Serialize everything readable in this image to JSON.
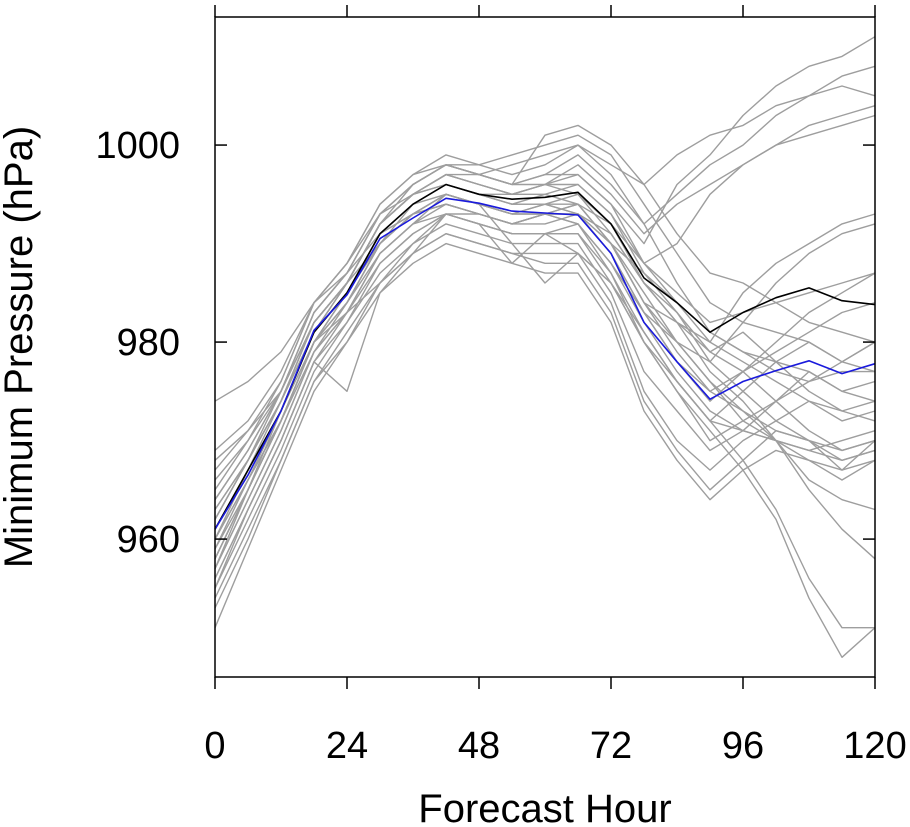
{
  "chart_data": {
    "type": "line",
    "title": "",
    "xlabel": "Forecast Hour",
    "ylabel": "Minimum Pressure (hPa)",
    "xlim": [
      0,
      120
    ],
    "ylim": [
      946,
      1013
    ],
    "xticks": [
      0,
      24,
      48,
      72,
      96,
      120
    ],
    "yticks": [
      960,
      980,
      1000
    ],
    "grid": false,
    "legend": "none",
    "colors": {
      "members": "#9e9e9e",
      "black": "#000000",
      "blue": "#1a1adc",
      "frame": "#000000"
    },
    "x": [
      0,
      6,
      12,
      18,
      24,
      30,
      36,
      42,
      48,
      54,
      60,
      66,
      72,
      78,
      84,
      90,
      96,
      102,
      108,
      114,
      120
    ],
    "series": [
      {
        "color": "#000000",
        "values": [
          961,
          967,
          973,
          981,
          985,
          991,
          994,
          996,
          995,
          994.5,
          994.7,
          995.2,
          992,
          986.5,
          984,
          981,
          983,
          984.5,
          985.5,
          984.2,
          983.8
        ]
      },
      {
        "color": "#1a1adc",
        "values": [
          961,
          966.5,
          973,
          981.2,
          984.8,
          990.5,
          992.6,
          994.6,
          994.1,
          993.3,
          993.1,
          992.9,
          989,
          982,
          978,
          974.2,
          976,
          977.1,
          978.1,
          976.8,
          977.8
        ]
      },
      {
        "color": "#9e9e9e",
        "values": [
          958,
          965,
          973,
          981,
          986,
          992,
          995,
          997,
          996,
          995,
          996,
          997,
          994,
          990,
          996,
          999,
          1003,
          1006,
          1008,
          1009,
          1011
        ]
      },
      {
        "color": "#9e9e9e",
        "values": [
          964,
          969,
          975,
          983,
          987,
          993,
          996,
          998,
          997,
          996,
          997,
          999,
          996,
          992,
          995,
          998,
          1000,
          1003,
          1005,
          1007,
          1008
        ]
      },
      {
        "color": "#9e9e9e",
        "values": [
          967,
          971,
          976,
          984,
          988,
          994,
          997,
          999,
          998,
          997,
          998,
          1000,
          998,
          996,
          999,
          1001,
          1002,
          1004,
          1005,
          1006,
          1005
        ]
      },
      {
        "color": "#9e9e9e",
        "values": [
          962,
          968,
          974,
          982,
          986,
          992,
          995,
          997,
          996,
          995,
          996,
          998,
          995,
          991,
          994,
          996,
          998,
          1000,
          1001,
          1002,
          1003
        ]
      },
      {
        "color": "#9e9e9e",
        "values": [
          960,
          966,
          972,
          980,
          985,
          991,
          994,
          996,
          995,
          994,
          995,
          996,
          993,
          988,
          990,
          995,
          998,
          1000,
          1002,
          1003,
          1004
        ]
      },
      {
        "color": "#9e9e9e",
        "values": [
          956,
          963,
          970,
          978,
          983,
          989,
          992,
          995,
          994,
          993,
          994,
          994,
          990,
          984,
          982,
          980,
          985,
          988,
          990,
          992,
          993
        ]
      },
      {
        "color": "#9e9e9e",
        "values": [
          963,
          968,
          974,
          981,
          986,
          990,
          993,
          994,
          993,
          992,
          993,
          992,
          988,
          983,
          980,
          978,
          982,
          986,
          989,
          991,
          992
        ]
      },
      {
        "color": "#9e9e9e",
        "values": [
          959,
          965,
          972,
          980,
          984,
          990,
          993,
          995,
          994,
          993,
          993,
          993,
          989,
          983,
          978,
          974,
          977,
          980,
          983,
          985,
          987
        ]
      },
      {
        "color": "#9e9e9e",
        "values": [
          957,
          964,
          971,
          979,
          983,
          988,
          991,
          993,
          992,
          991,
          991,
          991,
          986,
          980,
          976,
          972,
          975,
          978,
          980,
          978,
          980
        ]
      },
      {
        "color": "#9e9e9e",
        "values": [
          955,
          962,
          969,
          977,
          982,
          987,
          990,
          992,
          991,
          990,
          990,
          990,
          985,
          977,
          973,
          969,
          971,
          974,
          977,
          975,
          976
        ]
      },
      {
        "color": "#9e9e9e",
        "values": [
          954,
          961,
          968,
          976,
          981,
          986,
          989,
          991,
          990,
          989,
          989,
          989,
          984,
          975,
          970,
          967,
          970,
          972,
          974,
          972,
          973
        ]
      },
      {
        "color": "#9e9e9e",
        "values": [
          953,
          960,
          968,
          976,
          980,
          986,
          989,
          991,
          990,
          989,
          988,
          988,
          983,
          974,
          969,
          965,
          968,
          971,
          970,
          967,
          970
        ]
      },
      {
        "color": "#9e9e9e",
        "values": [
          951,
          959,
          967,
          975,
          980,
          985,
          988,
          990,
          989,
          988,
          987,
          987,
          982,
          973,
          968,
          964,
          967,
          969,
          968,
          966,
          968
        ]
      },
      {
        "color": "#9e9e9e",
        "values": [
          966,
          970,
          975,
          983,
          987,
          993,
          996,
          998,
          997,
          996,
          996,
          996,
          993,
          987,
          983,
          979,
          981,
          978,
          975,
          973,
          972
        ]
      },
      {
        "color": "#9e9e9e",
        "values": [
          965,
          970,
          976,
          984,
          988,
          994,
          997,
          998,
          997,
          996,
          997,
          997,
          994,
          988,
          984,
          980,
          978,
          976,
          974,
          973,
          974
        ]
      },
      {
        "color": "#9e9e9e",
        "values": [
          961,
          967,
          973,
          981,
          985,
          991,
          994,
          996,
          995,
          995,
          996,
          995,
          991,
          986,
          982,
          977,
          974,
          970,
          966,
          964,
          963
        ]
      },
      {
        "color": "#9e9e9e",
        "values": [
          958,
          965,
          972,
          980,
          985,
          990,
          994,
          995,
          994,
          993,
          993,
          992,
          987,
          981,
          976,
          972,
          968,
          963,
          956,
          951,
          951
        ]
      },
      {
        "color": "#9e9e9e",
        "values": [
          960,
          966,
          972,
          979,
          984,
          989,
          992,
          993,
          992,
          991,
          991,
          991,
          987,
          980,
          975,
          971,
          967,
          962,
          954,
          948,
          951
        ]
      },
      {
        "color": "#9e9e9e",
        "values": [
          962,
          968,
          974,
          982,
          986,
          992,
          995,
          997,
          996,
          995,
          995,
          994,
          990,
          985,
          980,
          976,
          973,
          970,
          965,
          961,
          958
        ]
      },
      {
        "color": "#9e9e9e",
        "values": [
          974,
          976,
          979,
          984,
          987,
          991,
          993,
          994,
          993,
          992,
          993,
          994,
          992,
          988,
          985,
          982,
          983,
          984,
          985,
          986,
          987
        ]
      },
      {
        "color": "#9e9e9e",
        "values": [
          969,
          972,
          977,
          984,
          988,
          993,
          995,
          996,
          995,
          994,
          994,
          993,
          990,
          987,
          984,
          981,
          979,
          977,
          976,
          977,
          977
        ]
      },
      {
        "color": "#9e9e9e",
        "values": [
          968,
          971,
          975,
          982,
          986,
          992,
          995,
          996,
          995,
          994,
          994,
          993,
          991,
          986,
          983,
          978,
          975,
          972,
          970,
          968,
          969
        ]
      },
      {
        "color": "#9e9e9e",
        "values": [
          963,
          968,
          974,
          981,
          985,
          991,
          993,
          994,
          993,
          992,
          993,
          993,
          990,
          984,
          980,
          976,
          972,
          970,
          969,
          970,
          971
        ]
      },
      {
        "color": "#9e9e9e",
        "values": [
          959,
          966,
          973,
          980,
          984,
          990,
          993,
          995,
          994,
          993,
          994,
          995,
          992,
          986,
          982,
          979,
          977,
          974,
          971,
          969,
          970
        ]
      },
      {
        "color": "#9e9e9e",
        "values": [
          957,
          964,
          971,
          979,
          983,
          989,
          992,
          994,
          993,
          992,
          992,
          993,
          989,
          983,
          978,
          975,
          973,
          971,
          970,
          969,
          970
        ]
      },
      {
        "color": "#9e9e9e",
        "values": [
          956,
          963,
          970,
          978,
          982,
          988,
          991,
          993,
          992,
          991,
          991,
          992,
          988,
          982,
          977,
          973,
          971,
          970,
          968,
          967,
          968
        ]
      },
      {
        "color": "#9e9e9e",
        "values": [
          960,
          967,
          974,
          982,
          986,
          992,
          995,
          997,
          997,
          998,
          999,
          1000,
          997,
          992,
          986,
          981,
          979,
          978,
          977,
          975,
          974
        ]
      },
      {
        "color": "#9e9e9e",
        "values": [
          962,
          968,
          975,
          983,
          987,
          993,
          996,
          998,
          998,
          999,
          1000,
          1001,
          999,
          994,
          989,
          984,
          982,
          981,
          980,
          978,
          977
        ]
      },
      {
        "color": "#9e9e9e",
        "values": [
          964,
          969,
          975,
          982,
          986,
          992,
          996,
          998,
          997,
          996,
          1001,
          1002,
          1000,
          996,
          991,
          987,
          986,
          984,
          982,
          981,
          980
        ]
      },
      {
        "color": "#9e9e9e",
        "values": [
          958,
          965,
          972,
          980,
          984,
          990,
          993,
          995,
          994,
          990,
          986,
          989,
          986,
          981,
          976,
          972,
          971,
          970,
          969,
          968,
          969
        ]
      },
      {
        "color": "#9e9e9e",
        "values": [
          955,
          963,
          970,
          978,
          975,
          985,
          989,
          993,
          992,
          988,
          991,
          989,
          986,
          980,
          975,
          970,
          972,
          974,
          976,
          978,
          980
        ]
      },
      {
        "color": "#9e9e9e",
        "values": [
          957,
          965,
          972,
          980,
          983,
          986,
          990,
          993,
          993,
          992,
          993,
          994,
          990,
          984,
          979,
          975,
          977,
          979,
          981,
          983,
          984
        ]
      }
    ]
  }
}
